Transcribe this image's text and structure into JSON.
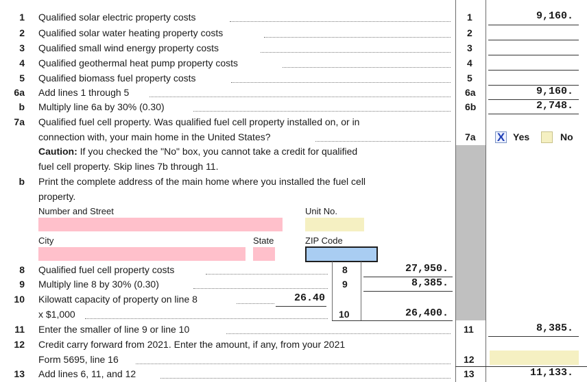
{
  "lines": [
    {
      "n": "1",
      "text": "Qualified solar electric property costs",
      "box": "1",
      "value": "9,160."
    },
    {
      "n": "2",
      "text": "Qualified solar water heating property costs",
      "box": "2",
      "value": ""
    },
    {
      "n": "3",
      "text": "Qualified small wind energy property costs",
      "box": "3",
      "value": ""
    },
    {
      "n": "4",
      "text": "Qualified geothermal heat pump property costs",
      "box": "4",
      "value": ""
    },
    {
      "n": "5",
      "text": "Qualified biomass fuel property costs",
      "box": "5",
      "value": ""
    },
    {
      "n": "6a",
      "text": "Add lines 1 through 5",
      "box": "6a",
      "value": "9,160."
    },
    {
      "n": "b",
      "text": "Multiply line 6a by 30% (0.30)",
      "box": "6b",
      "value": "2,748."
    }
  ],
  "line7a": {
    "n": "7a",
    "text1": "Qualified fuel cell property. Was qualified fuel cell property installed on, or in",
    "text2": "connection with, your main home in the United States?",
    "caution_label": "Caution:",
    "caution_text": " If you checked the \"No\" box, you cannot take a credit for qualified",
    "caution_text2": "fuel cell property. Skip lines 7b through 11.",
    "box": "7a",
    "yes_label": "Yes",
    "no_label": "No",
    "yes_mark": "X"
  },
  "line7b": {
    "n": "b",
    "text1": "Print the complete address of the main home where you installed the fuel cell",
    "text2": "property.",
    "street_label": "Number and Street",
    "unit_label": "Unit No.",
    "city_label": "City",
    "state_label": "State",
    "zip_label": "ZIP Code"
  },
  "line8": {
    "n": "8",
    "text": "Qualified fuel cell property costs",
    "box": "8",
    "value": "27,950."
  },
  "line9": {
    "n": "9",
    "text": "Multiply line 8 by 30% (0.30)",
    "box": "9",
    "value": "8,385."
  },
  "line10": {
    "n": "10",
    "text": "Kilowatt capacity of property on line 8",
    "kw": "26.40",
    "text2": "x $1,000",
    "box": "10",
    "value": "26,400."
  },
  "line11": {
    "n": "11",
    "text": "Enter the smaller of line 9 or line 10",
    "box": "11",
    "value": "8,385."
  },
  "line12": {
    "n": "12",
    "text1": "Credit carry forward from 2021. Enter the amount, if any, from your 2021",
    "text2": "Form 5695, line 16",
    "box": "12",
    "value": ""
  },
  "line13": {
    "n": "13",
    "text": "Add lines 6, 11, and 12",
    "box": "13",
    "value": "11,133."
  }
}
